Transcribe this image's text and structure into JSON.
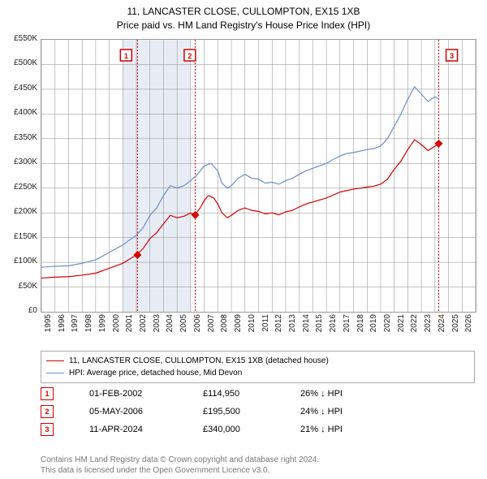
{
  "title_line1": "11, LANCASTER CLOSE, CULLOMPTON, EX15 1XB",
  "title_line2": "Price paid vs. HM Land Registry's House Price Index (HPI)",
  "chart": {
    "type": "line",
    "x_start_year": 1995,
    "x_end_year": 2027,
    "ylim": [
      0,
      550000
    ],
    "ytick_step": 50000,
    "yticks": [
      "£0",
      "£50K",
      "£100K",
      "£150K",
      "£200K",
      "£250K",
      "£300K",
      "£350K",
      "£400K",
      "£450K",
      "£500K",
      "£550K"
    ],
    "xticks": [
      "1995",
      "1996",
      "1997",
      "1998",
      "1999",
      "2000",
      "2001",
      "2002",
      "2003",
      "2004",
      "2005",
      "2006",
      "2007",
      "2008",
      "2009",
      "2010",
      "2011",
      "2012",
      "2013",
      "2014",
      "2015",
      "2016",
      "2017",
      "2018",
      "2019",
      "2020",
      "2021",
      "2022",
      "2023",
      "2024",
      "2025",
      "2026"
    ],
    "band_years": [
      2001,
      2006
    ],
    "grid_color": "#888888",
    "background_color": "#ffffff",
    "series": [
      {
        "name": "HPI: Average price, detached house, Mid Devon",
        "color": "#6a8fc7",
        "width": 1.2,
        "data": [
          [
            1995.0,
            90
          ],
          [
            1996.0,
            92
          ],
          [
            1997.0,
            93
          ],
          [
            1998.0,
            98
          ],
          [
            1999.0,
            105
          ],
          [
            2000.0,
            120
          ],
          [
            2001.0,
            135
          ],
          [
            2002.0,
            155
          ],
          [
            2002.5,
            170
          ],
          [
            2003.0,
            195
          ],
          [
            2003.5,
            210
          ],
          [
            2004.0,
            235
          ],
          [
            2004.5,
            255
          ],
          [
            2005.0,
            250
          ],
          [
            2005.5,
            255
          ],
          [
            2006.0,
            265
          ],
          [
            2006.5,
            278
          ],
          [
            2007.0,
            295
          ],
          [
            2007.5,
            300
          ],
          [
            2008.0,
            285
          ],
          [
            2008.3,
            260
          ],
          [
            2008.7,
            250
          ],
          [
            2009.0,
            255
          ],
          [
            2009.5,
            270
          ],
          [
            2010.0,
            278
          ],
          [
            2010.5,
            270
          ],
          [
            2011.0,
            268
          ],
          [
            2011.5,
            260
          ],
          [
            2012.0,
            262
          ],
          [
            2012.5,
            258
          ],
          [
            2013.0,
            265
          ],
          [
            2013.5,
            270
          ],
          [
            2014.0,
            278
          ],
          [
            2014.5,
            285
          ],
          [
            2015.0,
            290
          ],
          [
            2015.5,
            295
          ],
          [
            2016.0,
            300
          ],
          [
            2016.5,
            308
          ],
          [
            2017.0,
            315
          ],
          [
            2017.5,
            320
          ],
          [
            2018.0,
            322
          ],
          [
            2018.5,
            325
          ],
          [
            2019.0,
            328
          ],
          [
            2019.5,
            330
          ],
          [
            2020.0,
            335
          ],
          [
            2020.5,
            350
          ],
          [
            2021.0,
            375
          ],
          [
            2021.5,
            400
          ],
          [
            2022.0,
            430
          ],
          [
            2022.5,
            455
          ],
          [
            2023.0,
            440
          ],
          [
            2023.5,
            425
          ],
          [
            2024.0,
            435
          ],
          [
            2024.3,
            430
          ]
        ]
      },
      {
        "name": "11, LANCASTER CLOSE, CULLOMPTON, EX15 1XB (detached house)",
        "color": "#d40000",
        "width": 1.2,
        "data": [
          [
            1995.0,
            68
          ],
          [
            1996.0,
            70
          ],
          [
            1997.0,
            71
          ],
          [
            1998.0,
            74
          ],
          [
            1999.0,
            78
          ],
          [
            2000.0,
            88
          ],
          [
            2001.0,
            98
          ],
          [
            2002.0,
            115
          ],
          [
            2002.5,
            128
          ],
          [
            2003.0,
            148
          ],
          [
            2003.5,
            160
          ],
          [
            2004.0,
            178
          ],
          [
            2004.5,
            195
          ],
          [
            2005.0,
            190
          ],
          [
            2005.5,
            193
          ],
          [
            2006.0,
            200
          ],
          [
            2006.3,
            195
          ],
          [
            2006.7,
            210
          ],
          [
            2007.0,
            225
          ],
          [
            2007.3,
            235
          ],
          [
            2007.7,
            230
          ],
          [
            2008.0,
            218
          ],
          [
            2008.3,
            200
          ],
          [
            2008.7,
            190
          ],
          [
            2009.0,
            195
          ],
          [
            2009.5,
            205
          ],
          [
            2010.0,
            210
          ],
          [
            2010.5,
            205
          ],
          [
            2011.0,
            203
          ],
          [
            2011.5,
            198
          ],
          [
            2012.0,
            200
          ],
          [
            2012.5,
            196
          ],
          [
            2013.0,
            202
          ],
          [
            2013.5,
            205
          ],
          [
            2014.0,
            212
          ],
          [
            2014.5,
            218
          ],
          [
            2015.0,
            222
          ],
          [
            2015.5,
            226
          ],
          [
            2016.0,
            230
          ],
          [
            2016.5,
            236
          ],
          [
            2017.0,
            242
          ],
          [
            2017.5,
            245
          ],
          [
            2018.0,
            248
          ],
          [
            2018.5,
            250
          ],
          [
            2019.0,
            252
          ],
          [
            2019.5,
            254
          ],
          [
            2020.0,
            258
          ],
          [
            2020.5,
            268
          ],
          [
            2021.0,
            288
          ],
          [
            2021.5,
            305
          ],
          [
            2022.0,
            328
          ],
          [
            2022.5,
            348
          ],
          [
            2023.0,
            338
          ],
          [
            2023.5,
            326
          ],
          [
            2024.0,
            335
          ],
          [
            2024.3,
            340
          ]
        ]
      }
    ],
    "marker_color": "#d40000",
    "markers": [
      {
        "n": "1",
        "year": 2002.08,
        "value": 114950,
        "box_year": 2001.3
      },
      {
        "n": "2",
        "year": 2006.34,
        "value": 195500,
        "box_year": 2006.0
      },
      {
        "n": "3",
        "year": 2024.28,
        "value": 340000,
        "box_year": 2025.3
      }
    ]
  },
  "legend": {
    "items": [
      {
        "color": "#d40000",
        "label": "11, LANCASTER CLOSE, CULLOMPTON, EX15 1XB (detached house)"
      },
      {
        "color": "#6a8fc7",
        "label": "HPI: Average price, detached house, Mid Devon"
      }
    ]
  },
  "sales": [
    {
      "n": "1",
      "date": "01-FEB-2002",
      "price": "£114,950",
      "delta": "26% ↓ HPI"
    },
    {
      "n": "2",
      "date": "05-MAY-2006",
      "price": "£195,500",
      "delta": "24% ↓ HPI"
    },
    {
      "n": "3",
      "date": "11-APR-2024",
      "price": "£340,000",
      "delta": "21% ↓ HPI"
    }
  ],
  "attribution_line1": "Contains HM Land Registry data © Crown copyright and database right 2024.",
  "attribution_line2": "This data is licensed under the Open Government Licence v3.0."
}
